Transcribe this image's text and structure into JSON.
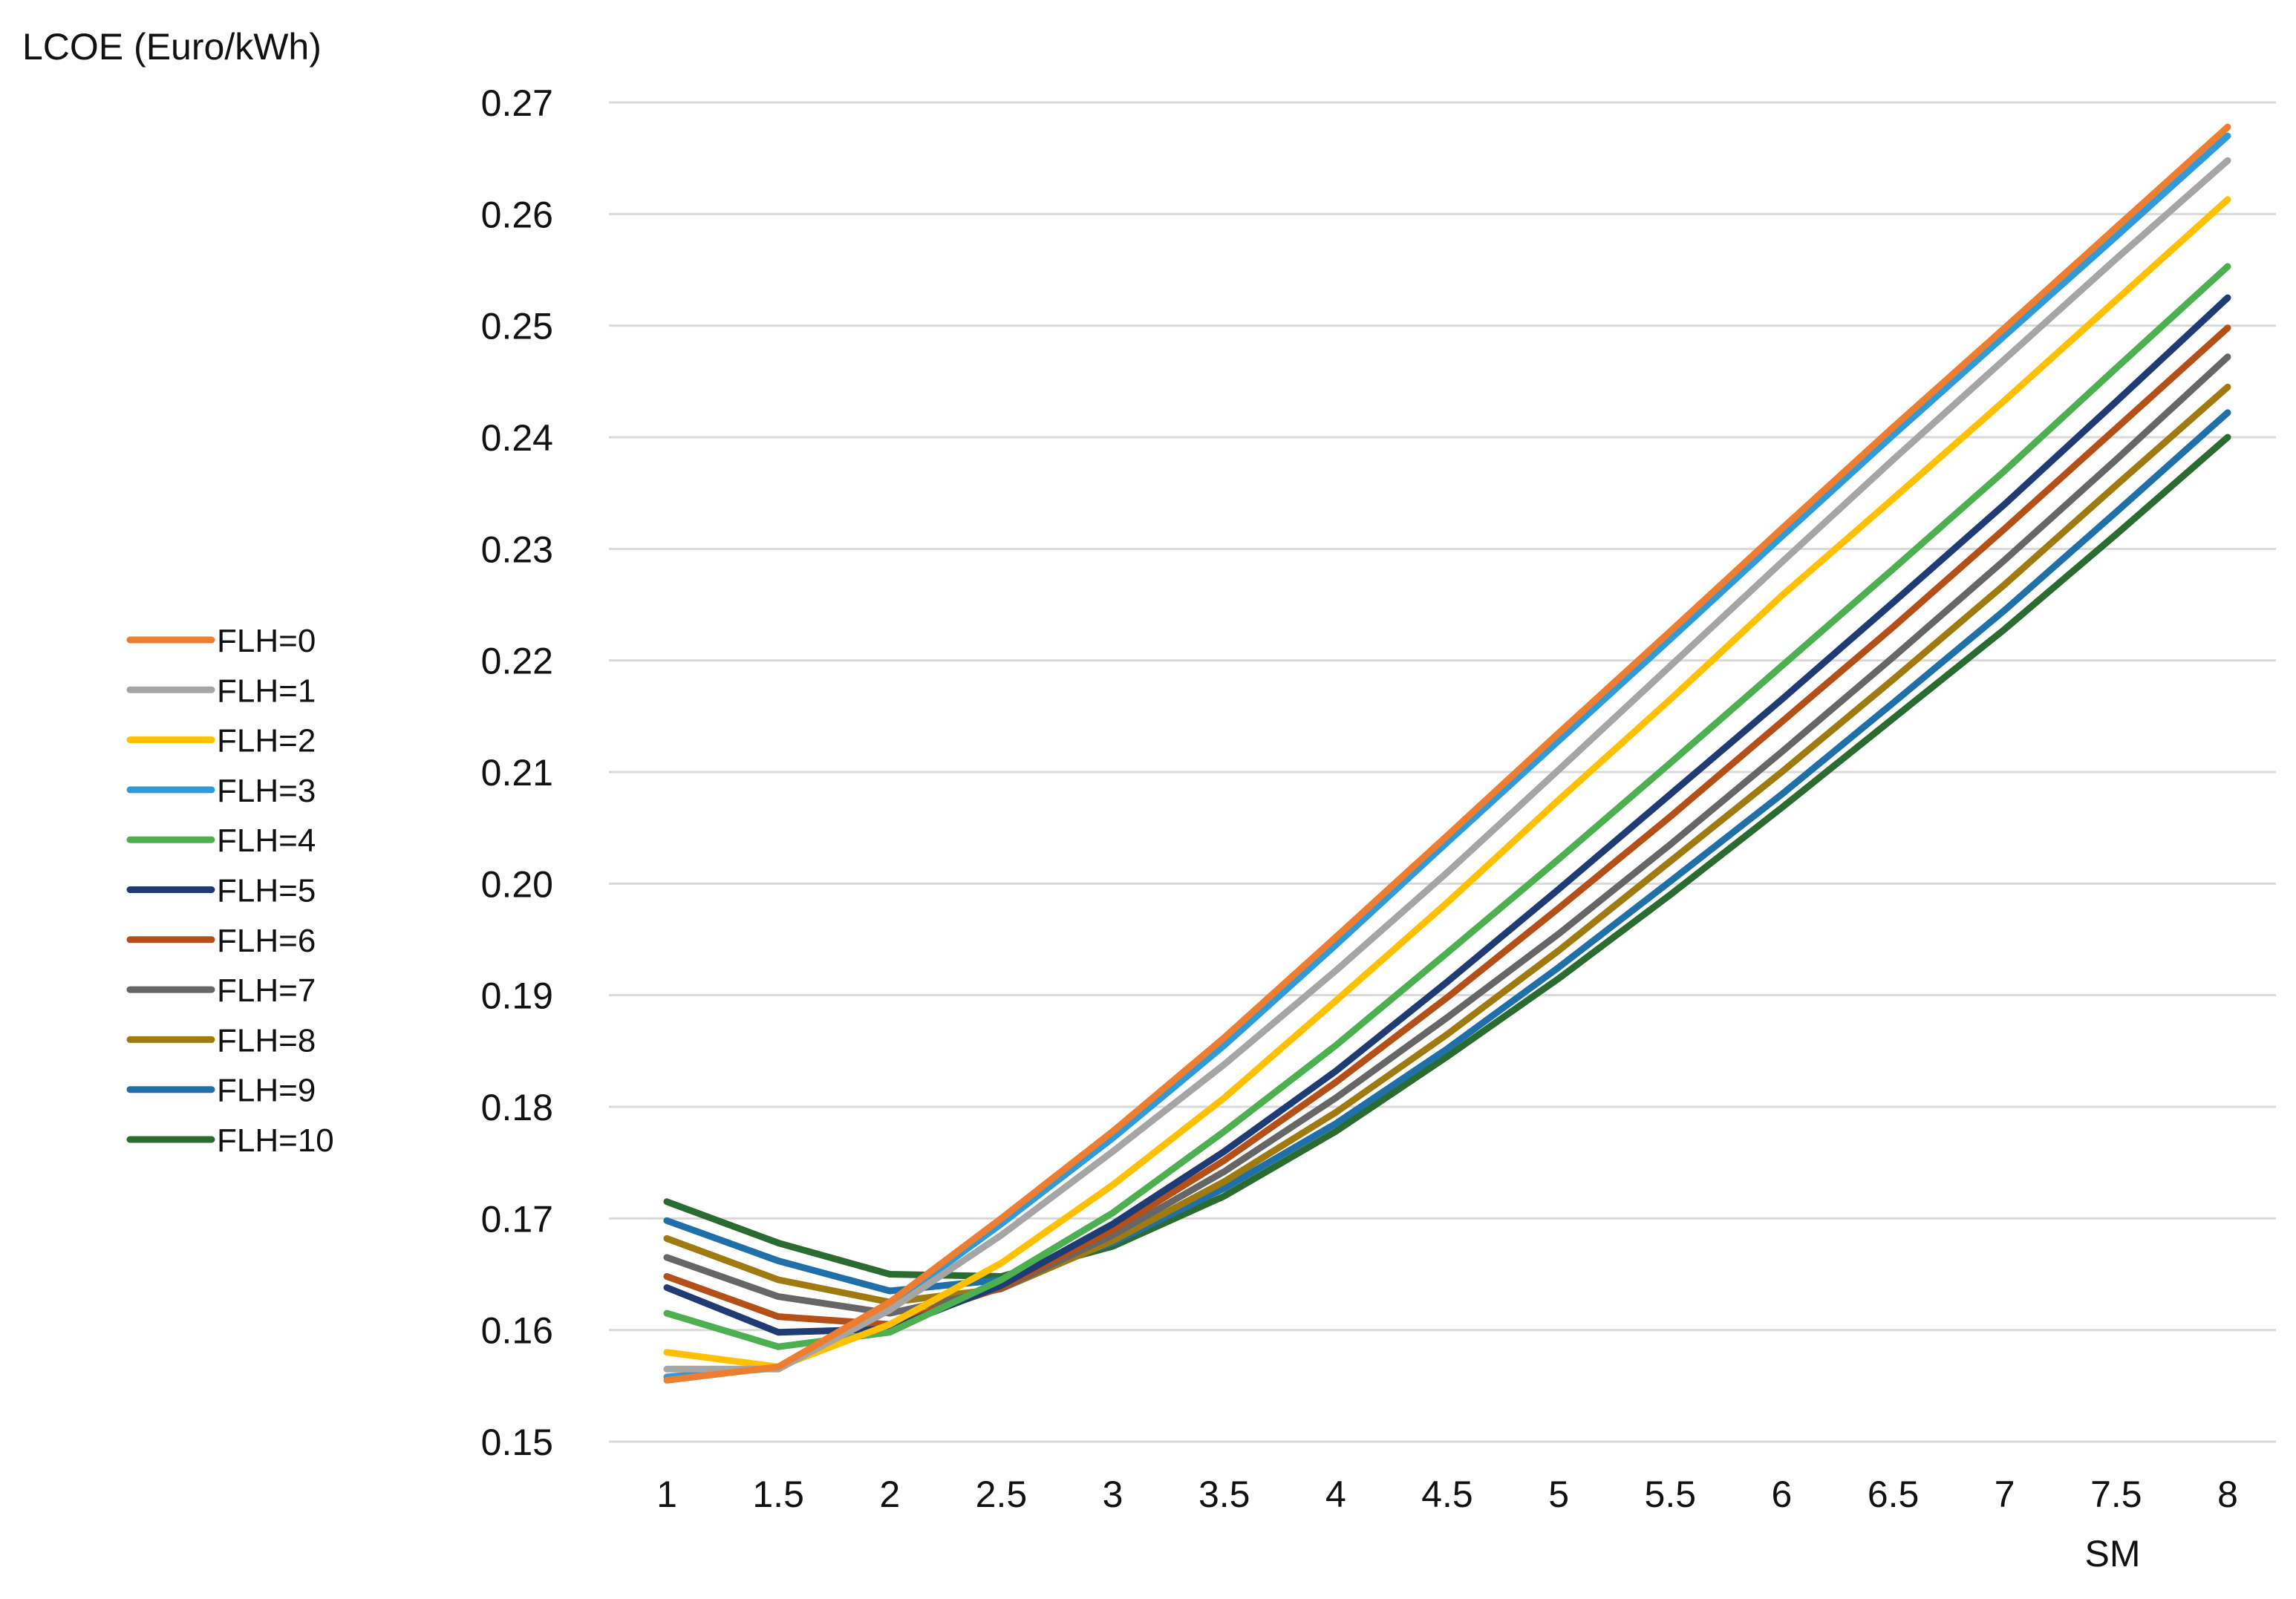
{
  "chart_data": {
    "type": "line",
    "title": "",
    "ylabel": "LCOE (Euro/kWh)",
    "xlabel": "SM",
    "x": [
      1,
      1.5,
      2,
      2.5,
      3,
      3.5,
      4,
      4.5,
      5,
      5.5,
      6,
      6.5,
      7,
      7.5,
      8
    ],
    "x_tick_labels": [
      "1",
      "1.5",
      "2",
      "2.5",
      "3",
      "3.5",
      "4",
      "4.5",
      "5",
      "5.5",
      "6",
      "6.5",
      "7",
      "7.5",
      "8"
    ],
    "ylim": [
      0.15,
      0.27
    ],
    "y_tick_labels": [
      "0.15",
      "0.16",
      "0.17",
      "0.18",
      "0.19",
      "0.20",
      "0.21",
      "0.22",
      "0.23",
      "0.24",
      "0.25",
      "0.26",
      "0.27"
    ],
    "grid": true,
    "legend_position": "left",
    "series": [
      {
        "name": "FLH=0",
        "color": "#ED7D31",
        "values": [
          0.1555,
          0.1567,
          0.1625,
          0.17,
          0.1778,
          0.1862,
          0.1952,
          0.2043,
          0.2135,
          0.2226,
          0.2318,
          0.2409,
          0.2498,
          0.2588,
          0.2678
        ]
      },
      {
        "name": "FLH=1",
        "color": "#A5A5A5",
        "values": [
          0.1565,
          0.1565,
          0.1618,
          0.1685,
          0.176,
          0.1838,
          0.1922,
          0.201,
          0.2102,
          0.2195,
          0.2288,
          0.238,
          0.247,
          0.256,
          0.2648
        ]
      },
      {
        "name": "FLH=2",
        "color": "#FFC000",
        "values": [
          0.158,
          0.1567,
          0.1605,
          0.166,
          0.173,
          0.1808,
          0.1895,
          0.1983,
          0.2075,
          0.2165,
          0.2258,
          0.2345,
          0.2433,
          0.2523,
          0.2613
        ]
      },
      {
        "name": "FLH=3",
        "color": "#2E9BD8",
        "values": [
          0.1558,
          0.1566,
          0.1622,
          0.1695,
          0.1772,
          0.1855,
          0.1945,
          0.2037,
          0.2128,
          0.2219,
          0.2311,
          0.2402,
          0.2491,
          0.258,
          0.267
        ]
      },
      {
        "name": "FLH=4",
        "color": "#4CAF50",
        "values": [
          0.1615,
          0.1585,
          0.1598,
          0.1645,
          0.1705,
          0.1778,
          0.1855,
          0.1938,
          0.2022,
          0.2108,
          0.2195,
          0.2282,
          0.237,
          0.2462,
          0.2553
        ]
      },
      {
        "name": "FLH=5",
        "color": "#1F3B73",
        "values": [
          0.1638,
          0.1598,
          0.1601,
          0.164,
          0.1695,
          0.176,
          0.1832,
          0.1912,
          0.1995,
          0.208,
          0.2165,
          0.2252,
          0.234,
          0.2432,
          0.2525
        ]
      },
      {
        "name": "FLH=6",
        "color": "#B44F18",
        "values": [
          0.1648,
          0.1612,
          0.1605,
          0.1638,
          0.169,
          0.1752,
          0.1822,
          0.1898,
          0.1978,
          0.206,
          0.2145,
          0.223,
          0.2318,
          0.2408,
          0.2498
        ]
      },
      {
        "name": "FLH=7",
        "color": "#666666",
        "values": [
          0.1665,
          0.163,
          0.1615,
          0.1637,
          0.1685,
          0.1742,
          0.1808,
          0.188,
          0.1955,
          0.2035,
          0.2118,
          0.2203,
          0.229,
          0.238,
          0.2472
        ]
      },
      {
        "name": "FLH=8",
        "color": "#9E7A10",
        "values": [
          0.1682,
          0.1645,
          0.1625,
          0.1637,
          0.168,
          0.1733,
          0.1795,
          0.1865,
          0.194,
          0.202,
          0.21,
          0.2183,
          0.2268,
          0.2357,
          0.2445
        ]
      },
      {
        "name": "FLH=9",
        "color": "#1F6FA8",
        "values": [
          0.1698,
          0.1662,
          0.1635,
          0.1645,
          0.1678,
          0.1727,
          0.1785,
          0.1852,
          0.1925,
          0.2002,
          0.208,
          0.2162,
          0.2245,
          0.2333,
          0.2422
        ]
      },
      {
        "name": "FLH=10",
        "color": "#2A6B2F",
        "values": [
          0.1715,
          0.1678,
          0.165,
          0.1648,
          0.1675,
          0.172,
          0.1778,
          0.1845,
          0.1915,
          0.199,
          0.2068,
          0.2148,
          0.2228,
          0.2313,
          0.24
        ]
      }
    ]
  }
}
